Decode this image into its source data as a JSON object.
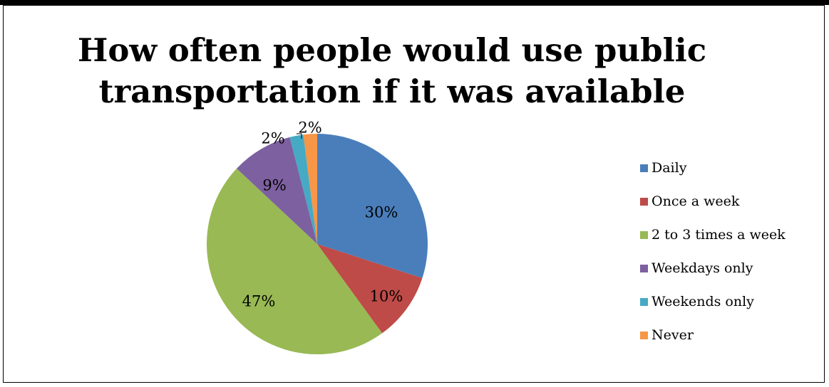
{
  "chart_data": {
    "type": "pie",
    "title_lines": [
      "How often people would use public",
      "transportation if it was available"
    ],
    "categories": [
      "Daily",
      "Once a week",
      "2 to 3 times a week",
      "Weekdays only",
      "Weekends only",
      "Never"
    ],
    "values": [
      30,
      10,
      47,
      9,
      2,
      2
    ],
    "data_labels": [
      "30%",
      "10%",
      "47%",
      "9%",
      "2%",
      "2%"
    ],
    "colors": [
      "#4a7ebb",
      "#be4b48",
      "#98b954",
      "#7d60a0",
      "#46aac5",
      "#f79646"
    ],
    "legend_position": "right",
    "start_angle_deg": 0,
    "direction": "clockwise"
  }
}
